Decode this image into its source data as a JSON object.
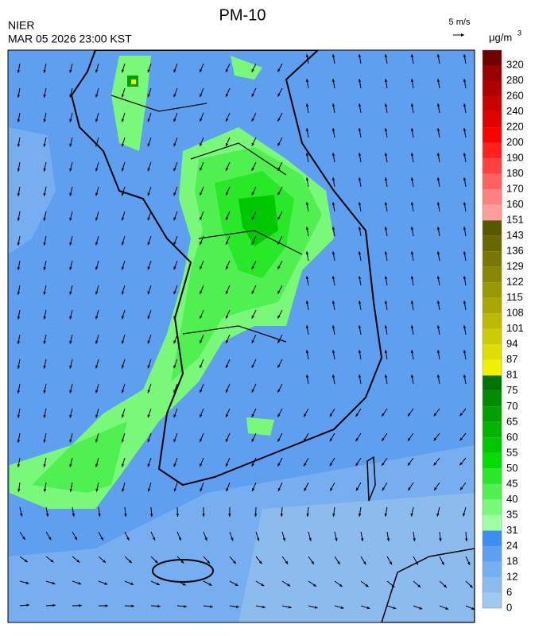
{
  "header": {
    "title": "PM-10",
    "agency": "NIER",
    "timestamp": "MAR 05 2026 23:00 KST",
    "wind_scale": "5 m/s"
  },
  "colorbar": {
    "unit": "μg/m",
    "unit_exponent": "3",
    "ticks": [
      0,
      6,
      12,
      18,
      24,
      31,
      35,
      40,
      45,
      50,
      55,
      60,
      65,
      70,
      75,
      81,
      87,
      94,
      101,
      108,
      115,
      122,
      129,
      136,
      143,
      151,
      160,
      170,
      180,
      190,
      200,
      220,
      240,
      260,
      280,
      320
    ],
    "colors": [
      "#9ecaee",
      "#8cbcee",
      "#76aef0",
      "#5f9ff0",
      "#3d8ef0",
      "#a0ffa0",
      "#7af87a",
      "#50f050",
      "#28e828",
      "#00dd00",
      "#00c800",
      "#00b400",
      "#00a000",
      "#008c00",
      "#007400",
      "#f0f000",
      "#dede00",
      "#cccc00",
      "#baba00",
      "#a8a800",
      "#989800",
      "#888800",
      "#787800",
      "#686800",
      "#585800",
      "#ff9c9c",
      "#ff8080",
      "#ff6060",
      "#ff4040",
      "#ff2020",
      "#ff0000",
      "#e00000",
      "#c80000",
      "#b00000",
      "#980000",
      "#700000"
    ]
  }
}
